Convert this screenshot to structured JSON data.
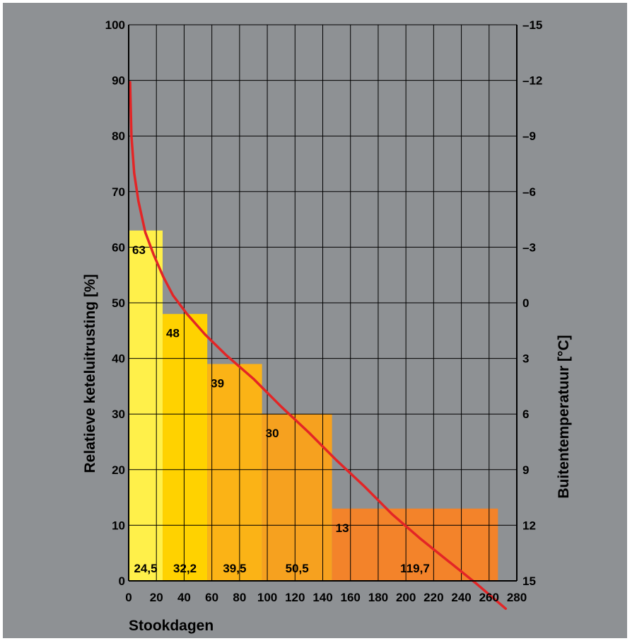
{
  "chart_data": {
    "type": "bar",
    "xlabel": "Stookdagen",
    "ylabel": "Relatieve keteluitrusting [%]",
    "y2label": "Buitentemperatuur [°C]",
    "xlim": [
      0,
      280
    ],
    "ylim": [
      0,
      100
    ],
    "y2lim": [
      15,
      -15
    ],
    "x_ticks": [
      "0",
      "20",
      "40",
      "60",
      "80",
      "100",
      "120",
      "140",
      "160",
      "180",
      "200",
      "220",
      "240",
      "260",
      "280"
    ],
    "y_ticks": [
      "0",
      "10",
      "20",
      "30",
      "40",
      "50",
      "60",
      "70",
      "80",
      "90",
      "100"
    ],
    "y2_ticks": [
      "15",
      "12",
      "9",
      "6",
      "3",
      "0",
      "–3",
      "–6",
      "–9",
      "–12",
      "–15"
    ],
    "grid": true,
    "bars": [
      {
        "x_start": 0,
        "days": 24.5,
        "days_label": "24,5",
        "value": 63,
        "value_label": "63",
        "color": "#fff04a"
      },
      {
        "x_start": 24.5,
        "days": 32.2,
        "days_label": "32,2",
        "value": 48,
        "value_label": "48",
        "color": "#ffd200"
      },
      {
        "x_start": 56.7,
        "days": 39.5,
        "days_label": "39,5",
        "value": 39,
        "value_label": "39",
        "color": "#fbb316"
      },
      {
        "x_start": 96.2,
        "days": 50.5,
        "days_label": "50,5",
        "value": 30,
        "value_label": "30",
        "color": "#f6a11f"
      },
      {
        "x_start": 146.7,
        "days": 119.7,
        "days_label": "119,7",
        "value": 13,
        "value_label": "13",
        "color": "#f3832a"
      }
    ],
    "temperature_curve": {
      "color": "#e32526",
      "points": [
        [
          1,
          -11.9
        ],
        [
          2,
          -9.0
        ],
        [
          4,
          -7.0
        ],
        [
          7,
          -5.5
        ],
        [
          12,
          -3.8
        ],
        [
          18,
          -2.6
        ],
        [
          25,
          -1.4
        ],
        [
          32,
          -0.4
        ],
        [
          42,
          0.6
        ],
        [
          55,
          1.7
        ],
        [
          70,
          2.8
        ],
        [
          90,
          4.1
        ],
        [
          110,
          5.6
        ],
        [
          130,
          7.0
        ],
        [
          150,
          8.5
        ],
        [
          170,
          9.9
        ],
        [
          190,
          11.4
        ],
        [
          210,
          12.7
        ],
        [
          230,
          13.9
        ],
        [
          250,
          15.1
        ],
        [
          272,
          16.5
        ]
      ]
    }
  }
}
